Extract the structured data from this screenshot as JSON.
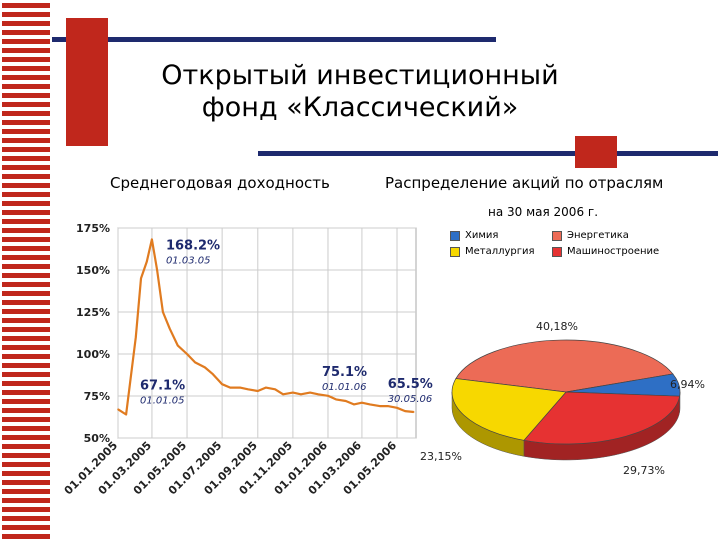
{
  "title_line1": "Открытый инвестиционный",
  "title_line2": "фонд «Классический»",
  "section_left": "Среднегодовая доходность",
  "section_right": "Распределение акций по отраслям",
  "pie_subtitle": "на 30 мая 2006 г.",
  "colors": {
    "line": "#e07b20",
    "navy": "#1e2a6e",
    "red": "#c0271c",
    "stripe": "#c0271c"
  },
  "chart_data": [
    {
      "type": "line",
      "ylabel": "",
      "xlabel": "",
      "ylim": [
        50,
        175
      ],
      "y_ticks": [
        "175%",
        "150%",
        "125%",
        "100%",
        "75%",
        "50%"
      ],
      "x_ticks": [
        "01.01.2005",
        "01.03.2005",
        "01.05.2005",
        "01.07.2005",
        "01.09.2005",
        "01.11.2005",
        "01.01.2006",
        "01.03.2006",
        "01.05.2006"
      ],
      "grid": true,
      "series": [
        {
          "x": [
            "01.01.2005",
            "15.01.2005",
            "01.02.2005",
            "10.02.2005",
            "20.02.2005",
            "01.03.2005",
            "10.03.2005",
            "20.03.2005",
            "01.04.2005",
            "15.04.2005",
            "01.05.2005",
            "15.05.2005",
            "01.06.2005",
            "15.06.2005",
            "01.07.2005",
            "15.07.2005",
            "01.08.2005",
            "15.08.2005",
            "01.09.2005",
            "15.09.2005",
            "01.10.2005",
            "15.10.2005",
            "01.11.2005",
            "15.11.2005",
            "01.12.2005",
            "15.12.2005",
            "01.01.2006",
            "15.01.2006",
            "01.02.2006",
            "15.02.2006",
            "01.03.2006",
            "15.03.2006",
            "01.04.2006",
            "15.04.2006",
            "01.05.2006",
            "15.05.2006",
            "30.05.2006"
          ],
          "values": [
            67.1,
            64,
            110,
            145,
            155,
            168.2,
            150,
            125,
            115,
            105,
            100,
            95,
            92,
            88,
            82,
            80,
            80,
            79,
            78,
            80,
            79,
            76,
            77,
            76,
            77,
            76,
            75.1,
            73,
            72,
            70,
            71,
            70,
            69,
            69,
            68,
            66,
            65.5
          ]
        }
      ],
      "annotations": [
        {
          "label": "168.2%",
          "date": "01.03.05",
          "x": "01.03.2005",
          "y": 168.2
        },
        {
          "label": "67.1%",
          "date": "01.01.05",
          "x": "01.01.2005",
          "y": 67.1
        },
        {
          "label": "75.1%",
          "date": "01.01.06",
          "x": "01.01.2006",
          "y": 75.1
        },
        {
          "label": "65.5%",
          "date": "30.05.06",
          "x": "30.05.2006",
          "y": 65.5
        }
      ]
    },
    {
      "type": "pie",
      "slices": [
        {
          "name": "Энергетика",
          "value": 40.18,
          "label": "40,18%",
          "color": "#ec6b56"
        },
        {
          "name": "Химия",
          "value": 6.94,
          "label": "6,94%",
          "color": "#2e6fc5"
        },
        {
          "name": "Машиностроение",
          "value": 29.73,
          "label": "29,73%",
          "color": "#e63232"
        },
        {
          "name": "Металлургия",
          "value": 23.15,
          "label": "23,15%",
          "color": "#f7d800"
        }
      ],
      "legend": [
        {
          "name": "Химия",
          "color": "#2e6fc5"
        },
        {
          "name": "Энергетика",
          "color": "#ec6b56"
        },
        {
          "name": "Металлургия",
          "color": "#f7d800"
        },
        {
          "name": "Машиностроение",
          "color": "#e63232"
        }
      ]
    }
  ]
}
